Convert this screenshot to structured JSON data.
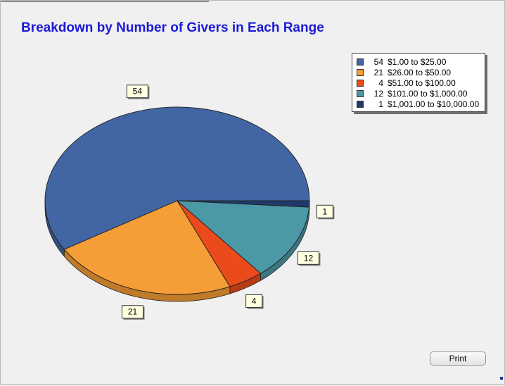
{
  "window": {
    "title": "Breakdown by Number of Givers in Each Range",
    "print_label": "Print"
  },
  "chart_data": {
    "type": "pie",
    "title": "Breakdown by Number of Givers in Each Range",
    "values": [
      54,
      21,
      4,
      12,
      1
    ],
    "labels": [
      "$1.00 to $25.00",
      "$26.00 to $50.00",
      "$51.00 to $100.00",
      "$101.00 to $1,000.00",
      "$1,001.00 to $10,000.00"
    ],
    "colors": [
      "#4265a3",
      "#f59d36",
      "#eb4a1a",
      "#4b98a7",
      "#1f3a6a"
    ],
    "data_labels": [
      "54",
      "21",
      "4",
      "12",
      "1"
    ],
    "legend_position": "top-right",
    "style": "3d"
  }
}
